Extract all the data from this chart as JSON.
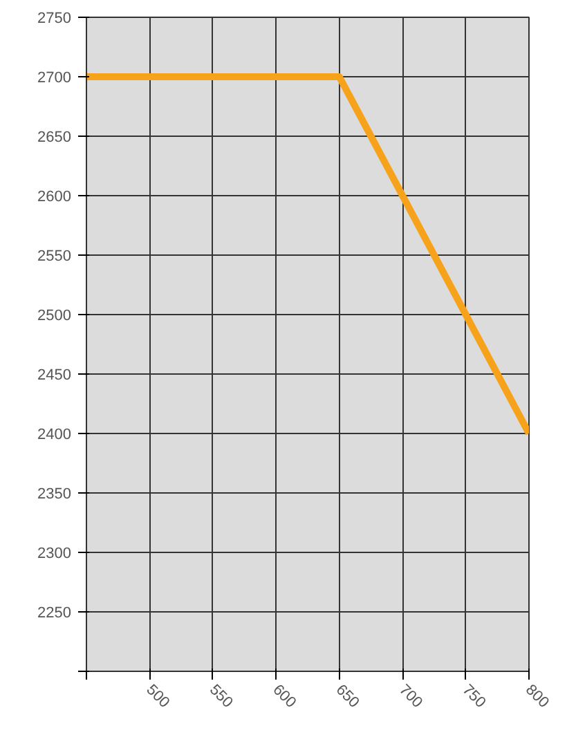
{
  "chart_data": {
    "type": "line",
    "x": [
      450,
      650,
      800
    ],
    "series": [
      {
        "color": "#f7a21b",
        "values": [
          2700,
          2700,
          2400
        ]
      }
    ],
    "xlim": [
      450,
      800
    ],
    "xticks": [
      {
        "value": 450,
        "label": null
      },
      500,
      550,
      600,
      650,
      700,
      750,
      800
    ],
    "ylim": [
      2200,
      2750
    ],
    "yticks": [
      {
        "value": 2200,
        "label": null
      },
      2250,
      2300,
      2350,
      2400,
      2450,
      2500,
      2550,
      2600,
      2650,
      2700,
      2750
    ],
    "grid": true,
    "marker": "none",
    "line_style": "solid"
  }
}
